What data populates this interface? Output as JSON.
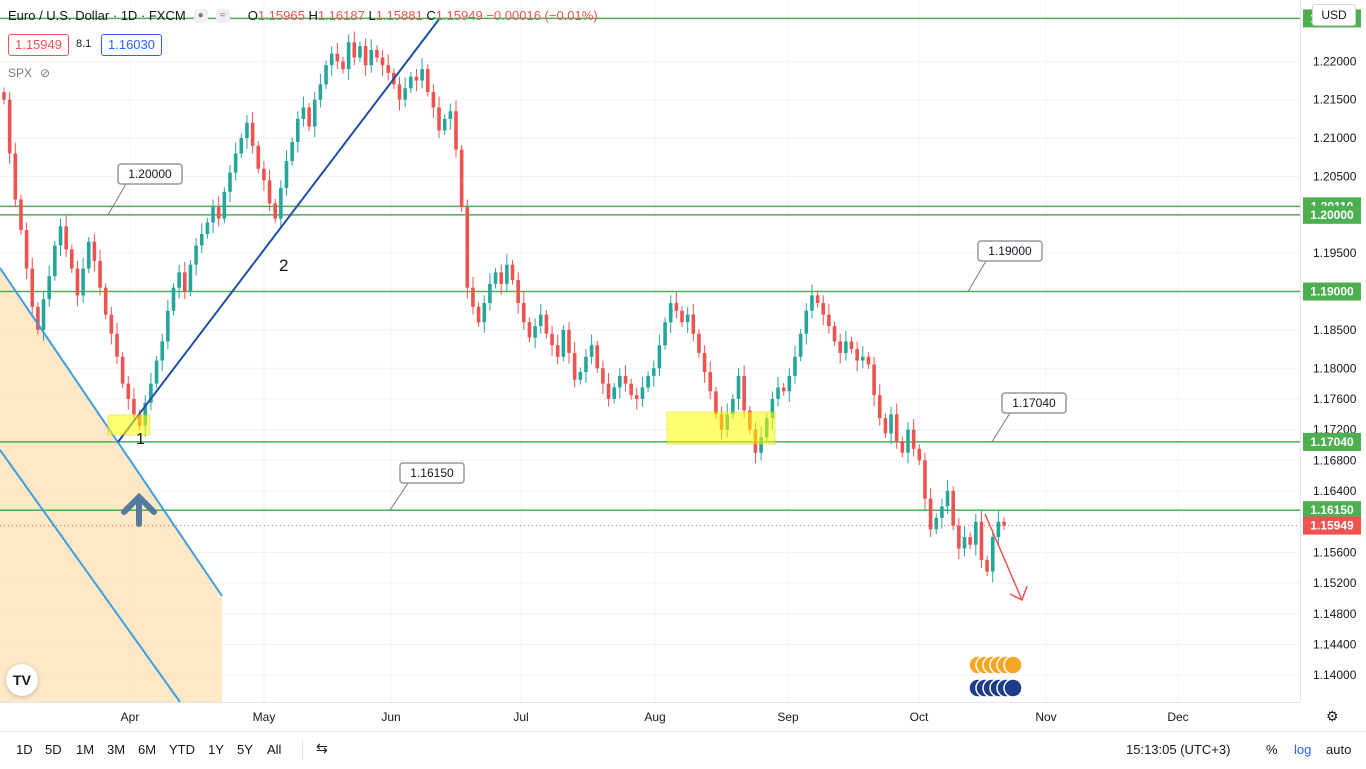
{
  "header": {
    "symbol": "Euro / U.S. Dollar · 1D · FXCM",
    "ohlc_open_label": "O",
    "ohlc_open": "1.15965",
    "ohlc_high_label": "H",
    "ohlc_high": "1.16187",
    "ohlc_low_label": "L",
    "ohlc_low": "1.15881",
    "ohlc_close_label": "C",
    "ohlc_close": "1.15949",
    "ohlc_change": "−0.00016 (−0.01%)",
    "bid": "1.15949",
    "spread": "8.1",
    "ask": "1.16030",
    "overlay_symbol": "SPX"
  },
  "currency": "USD",
  "bottom_bar": {
    "periods": [
      "1D",
      "5D",
      "1M",
      "3M",
      "6M",
      "YTD",
      "1Y",
      "5Y",
      "All"
    ],
    "clock": "15:13:05 (UTC+3)",
    "percent": "%",
    "log": "log",
    "auto": "auto"
  },
  "colors": {
    "up": "#26a69a",
    "down": "#ef5350",
    "level": "#4caf50",
    "trend": "#1e4fa3",
    "channel": "#3d9ee0",
    "highlight": "#ffff00",
    "channel_fill": "#ffe0b2"
  },
  "chart_data": {
    "type": "candlestick",
    "title": "Euro / U.S. Dollar · 1D · FXCM",
    "ylim": [
      1.1365,
      1.228
    ],
    "y_ticks": [
      "1.22000",
      "1.21500",
      "1.21000",
      "1.20500",
      "1.19500",
      "1.18500",
      "1.18000",
      "1.17600",
      "1.17200",
      "1.16800",
      "1.16400",
      "1.15600",
      "1.15200",
      "1.14800",
      "1.14400",
      "1.14000"
    ],
    "x_ticks": [
      "Apr",
      "May",
      "Jun",
      "Jul",
      "Aug",
      "Sep",
      "Oct",
      "Nov",
      "Dec"
    ],
    "levels": [
      {
        "value": 1.2256,
        "label": "1.22560"
      },
      {
        "value": 1.2011,
        "label": "1.20110"
      },
      {
        "value": 1.2,
        "label": "1.20000"
      },
      {
        "value": 1.19,
        "label": "1.19000"
      },
      {
        "value": 1.1704,
        "label": "1.17040"
      },
      {
        "value": 1.1615,
        "label": "1.16150"
      }
    ],
    "callouts": [
      "1.20000",
      "1.19000",
      "1.17040",
      "1.16150"
    ],
    "last_price": {
      "value": 1.15949,
      "label": "1.15949"
    },
    "annotations": [
      "1",
      "2"
    ],
    "closes": [
      1.215,
      1.208,
      1.202,
      1.198,
      1.193,
      1.188,
      1.185,
      1.189,
      1.192,
      1.196,
      1.1985,
      1.1955,
      1.193,
      1.1895,
      1.193,
      1.1965,
      1.194,
      1.1905,
      1.187,
      1.1845,
      1.1815,
      1.178,
      1.176,
      1.174,
      1.1725,
      1.1755,
      1.178,
      1.181,
      1.1835,
      1.1875,
      1.1905,
      1.1925,
      1.19,
      1.1935,
      1.196,
      1.1975,
      1.199,
      1.201,
      1.1995,
      1.203,
      1.2055,
      1.208,
      1.21,
      1.212,
      1.209,
      1.206,
      1.2045,
      1.2015,
      1.1995,
      1.2035,
      1.207,
      1.2095,
      1.2125,
      1.214,
      1.2115,
      1.215,
      1.217,
      1.2195,
      1.221,
      1.22,
      1.219,
      1.2225,
      1.2205,
      1.222,
      1.2195,
      1.2215,
      1.2205,
      1.2195,
      1.2185,
      1.217,
      1.215,
      1.2165,
      1.218,
      1.2175,
      1.219,
      1.216,
      1.214,
      1.211,
      1.2125,
      1.2135,
      1.2085,
      1.201,
      1.1905,
      1.188,
      1.186,
      1.1885,
      1.191,
      1.1925,
      1.191,
      1.1935,
      1.1915,
      1.1885,
      1.186,
      1.184,
      1.1855,
      1.187,
      1.1845,
      1.183,
      1.1815,
      1.185,
      1.182,
      1.1785,
      1.1795,
      1.1815,
      1.183,
      1.18,
      1.178,
      1.176,
      1.1775,
      1.179,
      1.178,
      1.1765,
      1.176,
      1.1775,
      1.179,
      1.18,
      1.183,
      1.186,
      1.1885,
      1.1875,
      1.186,
      1.187,
      1.1845,
      1.182,
      1.1795,
      1.177,
      1.174,
      1.172,
      1.174,
      1.176,
      1.179,
      1.1745,
      1.172,
      1.169,
      1.171,
      1.1735,
      1.176,
      1.1775,
      1.177,
      1.179,
      1.1815,
      1.1845,
      1.1875,
      1.1895,
      1.1885,
      1.187,
      1.1855,
      1.1835,
      1.182,
      1.1835,
      1.1825,
      1.181,
      1.1815,
      1.1805,
      1.1765,
      1.1735,
      1.1715,
      1.174,
      1.1705,
      1.169,
      1.172,
      1.1695,
      1.168,
      1.163,
      1.159,
      1.1605,
      1.162,
      1.164,
      1.1595,
      1.1565,
      1.158,
      1.157,
      1.16,
      1.155,
      1.1535,
      1.158,
      1.16,
      1.1595
    ]
  }
}
